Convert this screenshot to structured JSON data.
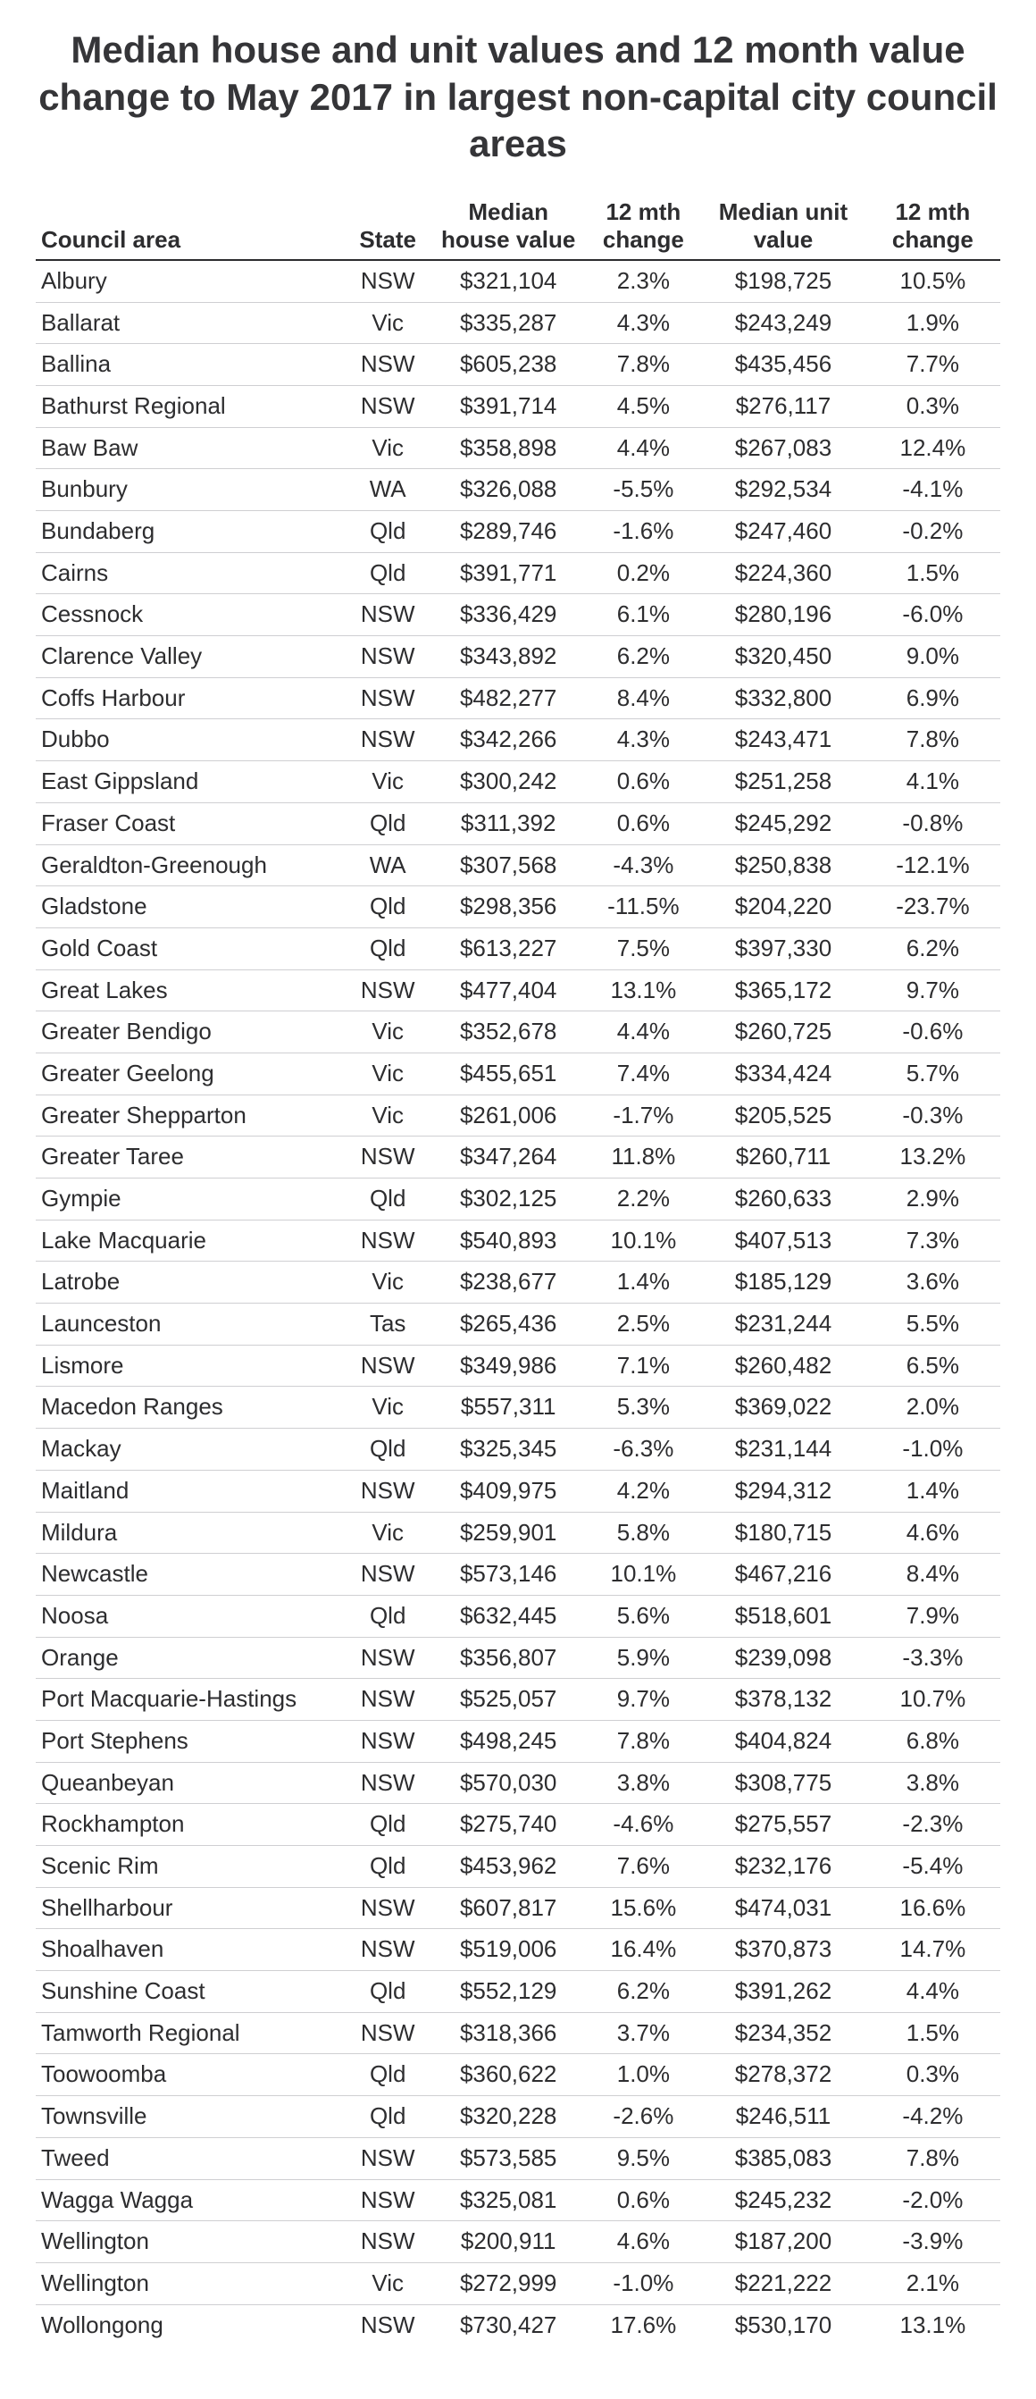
{
  "title": "Median house and unit values and 12 month value change to May 2017 in largest non-capital city council areas",
  "columns": {
    "area": "Council area",
    "state": "State",
    "house": "Median\nhouse value",
    "hchg": "12 mth\nchange",
    "unit": "Median unit\nvalue",
    "uchg": "12 mth\nchange"
  },
  "rows": [
    {
      "area": "Albury",
      "state": "NSW",
      "house": "$321,104",
      "hchg": "2.3%",
      "unit": "$198,725",
      "uchg": "10.5%"
    },
    {
      "area": "Ballarat",
      "state": "Vic",
      "house": "$335,287",
      "hchg": "4.3%",
      "unit": "$243,249",
      "uchg": "1.9%"
    },
    {
      "area": "Ballina",
      "state": "NSW",
      "house": "$605,238",
      "hchg": "7.8%",
      "unit": "$435,456",
      "uchg": "7.7%"
    },
    {
      "area": "Bathurst Regional",
      "state": "NSW",
      "house": "$391,714",
      "hchg": "4.5%",
      "unit": "$276,117",
      "uchg": "0.3%"
    },
    {
      "area": "Baw Baw",
      "state": "Vic",
      "house": "$358,898",
      "hchg": "4.4%",
      "unit": "$267,083",
      "uchg": "12.4%"
    },
    {
      "area": "Bunbury",
      "state": "WA",
      "house": "$326,088",
      "hchg": "-5.5%",
      "unit": "$292,534",
      "uchg": "-4.1%"
    },
    {
      "area": "Bundaberg",
      "state": "Qld",
      "house": "$289,746",
      "hchg": "-1.6%",
      "unit": "$247,460",
      "uchg": "-0.2%"
    },
    {
      "area": "Cairns",
      "state": "Qld",
      "house": "$391,771",
      "hchg": "0.2%",
      "unit": "$224,360",
      "uchg": "1.5%"
    },
    {
      "area": "Cessnock",
      "state": "NSW",
      "house": "$336,429",
      "hchg": "6.1%",
      "unit": "$280,196",
      "uchg": "-6.0%"
    },
    {
      "area": "Clarence Valley",
      "state": "NSW",
      "house": "$343,892",
      "hchg": "6.2%",
      "unit": "$320,450",
      "uchg": "9.0%"
    },
    {
      "area": "Coffs Harbour",
      "state": "NSW",
      "house": "$482,277",
      "hchg": "8.4%",
      "unit": "$332,800",
      "uchg": "6.9%"
    },
    {
      "area": "Dubbo",
      "state": "NSW",
      "house": "$342,266",
      "hchg": "4.3%",
      "unit": "$243,471",
      "uchg": "7.8%"
    },
    {
      "area": "East Gippsland",
      "state": "Vic",
      "house": "$300,242",
      "hchg": "0.6%",
      "unit": "$251,258",
      "uchg": "4.1%"
    },
    {
      "area": "Fraser Coast",
      "state": "Qld",
      "house": "$311,392",
      "hchg": "0.6%",
      "unit": "$245,292",
      "uchg": "-0.8%"
    },
    {
      "area": "Geraldton-Greenough",
      "state": "WA",
      "house": "$307,568",
      "hchg": "-4.3%",
      "unit": "$250,838",
      "uchg": "-12.1%"
    },
    {
      "area": "Gladstone",
      "state": "Qld",
      "house": "$298,356",
      "hchg": "-11.5%",
      "unit": "$204,220",
      "uchg": "-23.7%"
    },
    {
      "area": "Gold Coast",
      "state": "Qld",
      "house": "$613,227",
      "hchg": "7.5%",
      "unit": "$397,330",
      "uchg": "6.2%"
    },
    {
      "area": "Great Lakes",
      "state": "NSW",
      "house": "$477,404",
      "hchg": "13.1%",
      "unit": "$365,172",
      "uchg": "9.7%"
    },
    {
      "area": "Greater Bendigo",
      "state": "Vic",
      "house": "$352,678",
      "hchg": "4.4%",
      "unit": "$260,725",
      "uchg": "-0.6%"
    },
    {
      "area": "Greater Geelong",
      "state": "Vic",
      "house": "$455,651",
      "hchg": "7.4%",
      "unit": "$334,424",
      "uchg": "5.7%"
    },
    {
      "area": "Greater Shepparton",
      "state": "Vic",
      "house": "$261,006",
      "hchg": "-1.7%",
      "unit": "$205,525",
      "uchg": "-0.3%"
    },
    {
      "area": "Greater Taree",
      "state": "NSW",
      "house": "$347,264",
      "hchg": "11.8%",
      "unit": "$260,711",
      "uchg": "13.2%"
    },
    {
      "area": "Gympie",
      "state": "Qld",
      "house": "$302,125",
      "hchg": "2.2%",
      "unit": "$260,633",
      "uchg": "2.9%"
    },
    {
      "area": "Lake Macquarie",
      "state": "NSW",
      "house": "$540,893",
      "hchg": "10.1%",
      "unit": "$407,513",
      "uchg": "7.3%"
    },
    {
      "area": "Latrobe",
      "state": "Vic",
      "house": "$238,677",
      "hchg": "1.4%",
      "unit": "$185,129",
      "uchg": "3.6%"
    },
    {
      "area": "Launceston",
      "state": "Tas",
      "house": "$265,436",
      "hchg": "2.5%",
      "unit": "$231,244",
      "uchg": "5.5%"
    },
    {
      "area": "Lismore",
      "state": "NSW",
      "house": "$349,986",
      "hchg": "7.1%",
      "unit": "$260,482",
      "uchg": "6.5%"
    },
    {
      "area": "Macedon Ranges",
      "state": "Vic",
      "house": "$557,311",
      "hchg": "5.3%",
      "unit": "$369,022",
      "uchg": "2.0%"
    },
    {
      "area": "Mackay",
      "state": "Qld",
      "house": "$325,345",
      "hchg": "-6.3%",
      "unit": "$231,144",
      "uchg": "-1.0%"
    },
    {
      "area": "Maitland",
      "state": "NSW",
      "house": "$409,975",
      "hchg": "4.2%",
      "unit": "$294,312",
      "uchg": "1.4%"
    },
    {
      "area": "Mildura",
      "state": "Vic",
      "house": "$259,901",
      "hchg": "5.8%",
      "unit": "$180,715",
      "uchg": "4.6%"
    },
    {
      "area": "Newcastle",
      "state": "NSW",
      "house": "$573,146",
      "hchg": "10.1%",
      "unit": "$467,216",
      "uchg": "8.4%"
    },
    {
      "area": "Noosa",
      "state": "Qld",
      "house": "$632,445",
      "hchg": "5.6%",
      "unit": "$518,601",
      "uchg": "7.9%"
    },
    {
      "area": "Orange",
      "state": "NSW",
      "house": "$356,807",
      "hchg": "5.9%",
      "unit": "$239,098",
      "uchg": "-3.3%"
    },
    {
      "area": "Port Macquarie-Hastings",
      "state": "NSW",
      "house": "$525,057",
      "hchg": "9.7%",
      "unit": "$378,132",
      "uchg": "10.7%"
    },
    {
      "area": "Port Stephens",
      "state": "NSW",
      "house": "$498,245",
      "hchg": "7.8%",
      "unit": "$404,824",
      "uchg": "6.8%"
    },
    {
      "area": "Queanbeyan",
      "state": "NSW",
      "house": "$570,030",
      "hchg": "3.8%",
      "unit": "$308,775",
      "uchg": "3.8%"
    },
    {
      "area": "Rockhampton",
      "state": "Qld",
      "house": "$275,740",
      "hchg": "-4.6%",
      "unit": "$275,557",
      "uchg": "-2.3%"
    },
    {
      "area": "Scenic Rim",
      "state": "Qld",
      "house": "$453,962",
      "hchg": "7.6%",
      "unit": "$232,176",
      "uchg": "-5.4%"
    },
    {
      "area": "Shellharbour",
      "state": "NSW",
      "house": "$607,817",
      "hchg": "15.6%",
      "unit": "$474,031",
      "uchg": "16.6%"
    },
    {
      "area": "Shoalhaven",
      "state": "NSW",
      "house": "$519,006",
      "hchg": "16.4%",
      "unit": "$370,873",
      "uchg": "14.7%"
    },
    {
      "area": "Sunshine Coast",
      "state": "Qld",
      "house": "$552,129",
      "hchg": "6.2%",
      "unit": "$391,262",
      "uchg": "4.4%"
    },
    {
      "area": "Tamworth Regional",
      "state": "NSW",
      "house": "$318,366",
      "hchg": "3.7%",
      "unit": "$234,352",
      "uchg": "1.5%"
    },
    {
      "area": "Toowoomba",
      "state": "Qld",
      "house": "$360,622",
      "hchg": "1.0%",
      "unit": "$278,372",
      "uchg": "0.3%"
    },
    {
      "area": "Townsville",
      "state": "Qld",
      "house": "$320,228",
      "hchg": "-2.6%",
      "unit": "$246,511",
      "uchg": "-4.2%"
    },
    {
      "area": "Tweed",
      "state": "NSW",
      "house": "$573,585",
      "hchg": "9.5%",
      "unit": "$385,083",
      "uchg": "7.8%"
    },
    {
      "area": "Wagga Wagga",
      "state": "NSW",
      "house": "$325,081",
      "hchg": "0.6%",
      "unit": "$245,232",
      "uchg": "-2.0%"
    },
    {
      "area": "Wellington",
      "state": "NSW",
      "house": "$200,911",
      "hchg": "4.6%",
      "unit": "$187,200",
      "uchg": "-3.9%"
    },
    {
      "area": "Wellington",
      "state": "Vic",
      "house": "$272,999",
      "hchg": "-1.0%",
      "unit": "$221,222",
      "uchg": "2.1%"
    },
    {
      "area": "Wollongong",
      "state": "NSW",
      "house": "$730,427",
      "hchg": "17.6%",
      "unit": "$530,170",
      "uchg": "13.1%"
    }
  ]
}
